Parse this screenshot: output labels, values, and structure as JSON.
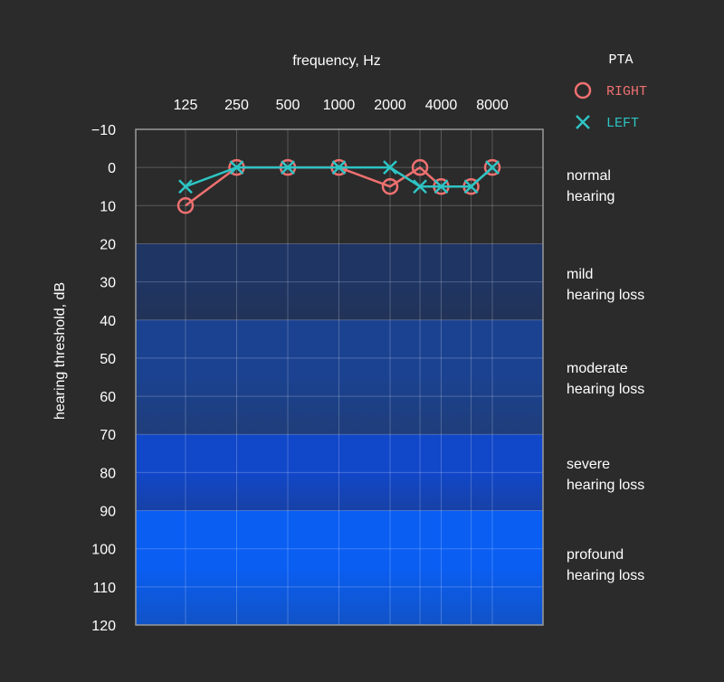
{
  "chart_data": {
    "type": "line",
    "x_title": "frequency, Hz",
    "y_title": "hearing threshold, dB",
    "x": [
      125,
      250,
      500,
      1000,
      2000,
      3000,
      4000,
      6000,
      8000
    ],
    "x_tick_labels": [
      "125",
      "250",
      "500",
      "1000",
      "2000",
      "4000",
      "8000"
    ],
    "x_tick_values": [
      125,
      250,
      500,
      1000,
      2000,
      4000,
      8000
    ],
    "y_tick_values": [
      -10,
      0,
      10,
      20,
      30,
      40,
      50,
      60,
      70,
      80,
      90,
      100,
      110,
      120
    ],
    "y_tick_labels": [
      "−10",
      "0",
      "10",
      "20",
      "30",
      "40",
      "50",
      "60",
      "70",
      "80",
      "90",
      "100",
      "110",
      "120"
    ],
    "ylim": [
      -10,
      120
    ],
    "y_inverted": true,
    "x_scale": "log2",
    "grid": true,
    "legend": {
      "title": "PTA",
      "placement": "top-right",
      "entries": [
        {
          "label": "RIGHT",
          "marker": "circle",
          "color": "#f07070"
        },
        {
          "label": "LEFT",
          "marker": "cross",
          "color": "#2ec4c4"
        }
      ]
    },
    "series": [
      {
        "name": "RIGHT",
        "color": "#f07070",
        "marker": "circle",
        "x": [
          125,
          250,
          500,
          1000,
          2000,
          3000,
          4000,
          6000,
          8000
        ],
        "values": [
          10,
          0,
          0,
          0,
          5,
          0,
          5,
          5,
          0
        ]
      },
      {
        "name": "LEFT",
        "color": "#2ec4c4",
        "marker": "cross",
        "x": [
          125,
          250,
          500,
          1000,
          2000,
          3000,
          4000,
          6000,
          8000
        ],
        "values": [
          5,
          0,
          0,
          0,
          0,
          5,
          5,
          5,
          0
        ]
      }
    ],
    "bands": [
      {
        "from": -10,
        "to": 20,
        "label_lines": [
          "normal",
          "hearing"
        ],
        "color": "#2b2b2b"
      },
      {
        "from": 20,
        "to": 40,
        "label_lines": [
          "mild",
          "hearing loss"
        ],
        "color": "#1f3564"
      },
      {
        "from": 40,
        "to": 70,
        "label_lines": [
          "moderate",
          "hearing loss"
        ],
        "color": "#1b4290"
      },
      {
        "from": 70,
        "to": 90,
        "label_lines": [
          "severe",
          "hearing loss"
        ],
        "color": "#1147c9"
      },
      {
        "from": 90,
        "to": 120,
        "label_lines": [
          "profound",
          "hearing loss"
        ],
        "color": "#0a5ef2"
      }
    ]
  }
}
